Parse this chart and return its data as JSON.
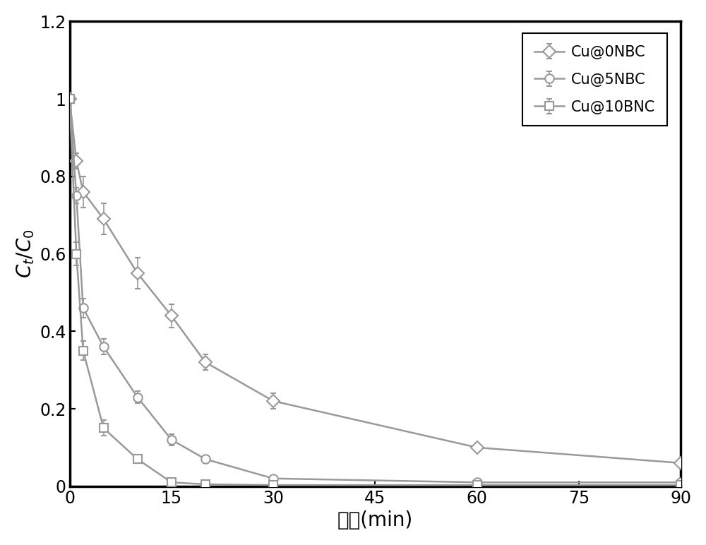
{
  "xlabel": "时间(min)",
  "xlim": [
    0,
    90
  ],
  "ylim": [
    0,
    1.2
  ],
  "xticks": [
    0,
    15,
    30,
    45,
    60,
    75,
    90
  ],
  "yticks": [
    0,
    0.2,
    0.4,
    0.6,
    0.8,
    1.0,
    1.2
  ],
  "series": [
    {
      "label": "Cu@0NBC",
      "marker": "D",
      "x": [
        0,
        1,
        2,
        5,
        10,
        15,
        20,
        30,
        60,
        90
      ],
      "y": [
        1.0,
        0.84,
        0.76,
        0.69,
        0.55,
        0.44,
        0.32,
        0.22,
        0.1,
        0.06
      ],
      "yerr": [
        0.01,
        0.02,
        0.04,
        0.04,
        0.04,
        0.03,
        0.02,
        0.02,
        0.01,
        0.01
      ]
    },
    {
      "label": "Cu@5NBC",
      "marker": "o",
      "x": [
        0,
        1,
        2,
        5,
        10,
        15,
        20,
        30,
        60,
        90
      ],
      "y": [
        1.0,
        0.75,
        0.46,
        0.36,
        0.23,
        0.12,
        0.07,
        0.02,
        0.01,
        0.01
      ],
      "yerr": [
        0.01,
        0.02,
        0.025,
        0.02,
        0.015,
        0.015,
        0.01,
        0.005,
        0.005,
        0.005
      ]
    },
    {
      "label": "Cu@10BNC",
      "marker": "s",
      "x": [
        0,
        1,
        2,
        5,
        10,
        15,
        20,
        30,
        60,
        90
      ],
      "y": [
        1.0,
        0.6,
        0.35,
        0.15,
        0.07,
        0.01,
        0.005,
        0.003,
        0.003,
        0.003
      ],
      "yerr": [
        0.01,
        0.03,
        0.025,
        0.02,
        0.01,
        0.005,
        0.003,
        0.002,
        0.002,
        0.002
      ]
    }
  ],
  "line_color": "#999999",
  "marker_size": 9,
  "linewidth": 1.8,
  "capsize": 3,
  "legend_fontsize": 15,
  "tick_fontsize": 17,
  "label_fontsize": 20,
  "figure_bg": "#ffffff"
}
